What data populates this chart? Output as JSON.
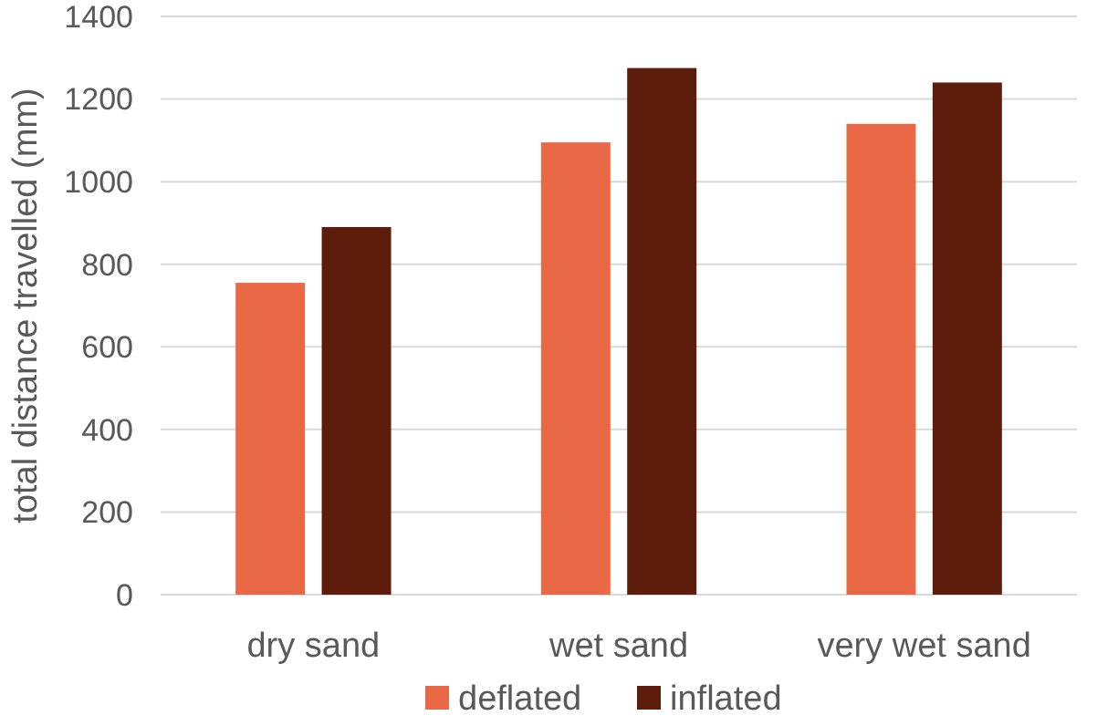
{
  "chart_data": {
    "type": "bar",
    "ylabel": "total distance travelled (mm)",
    "categories": [
      "dry sand",
      "wet sand",
      "very wet sand"
    ],
    "series": [
      {
        "name": "deflated",
        "color": "#e96845",
        "values": [
          755,
          1095,
          1140
        ]
      },
      {
        "name": "inflated",
        "color": "#5e1c0c",
        "values": [
          890,
          1275,
          1240
        ]
      }
    ],
    "ylim": [
      0,
      1400
    ],
    "yticks": [
      0,
      200,
      400,
      600,
      800,
      1000,
      1200,
      1400
    ],
    "grid": "y",
    "legend": "bottom"
  }
}
